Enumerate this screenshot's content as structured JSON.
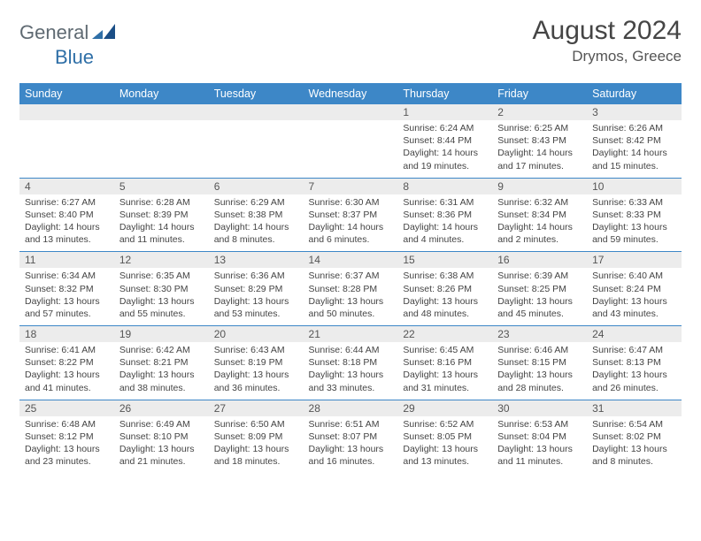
{
  "logo": {
    "text1": "General",
    "text2": "Blue"
  },
  "colors": {
    "header_bg": "#3d87c7",
    "header_text": "#ffffff",
    "daynum_bg": "#ececec",
    "row_border": "#3d87c7",
    "logo_gray": "#5f6a72",
    "logo_blue": "#2f6fa7"
  },
  "title": "August 2024",
  "location": "Drymos, Greece",
  "weekdays": [
    "Sunday",
    "Monday",
    "Tuesday",
    "Wednesday",
    "Thursday",
    "Friday",
    "Saturday"
  ],
  "weeks": [
    [
      {
        "day": "",
        "sunrise": "",
        "sunset": "",
        "daylight": ""
      },
      {
        "day": "",
        "sunrise": "",
        "sunset": "",
        "daylight": ""
      },
      {
        "day": "",
        "sunrise": "",
        "sunset": "",
        "daylight": ""
      },
      {
        "day": "",
        "sunrise": "",
        "sunset": "",
        "daylight": ""
      },
      {
        "day": "1",
        "sunrise": "Sunrise: 6:24 AM",
        "sunset": "Sunset: 8:44 PM",
        "daylight": "Daylight: 14 hours and 19 minutes."
      },
      {
        "day": "2",
        "sunrise": "Sunrise: 6:25 AM",
        "sunset": "Sunset: 8:43 PM",
        "daylight": "Daylight: 14 hours and 17 minutes."
      },
      {
        "day": "3",
        "sunrise": "Sunrise: 6:26 AM",
        "sunset": "Sunset: 8:42 PM",
        "daylight": "Daylight: 14 hours and 15 minutes."
      }
    ],
    [
      {
        "day": "4",
        "sunrise": "Sunrise: 6:27 AM",
        "sunset": "Sunset: 8:40 PM",
        "daylight": "Daylight: 14 hours and 13 minutes."
      },
      {
        "day": "5",
        "sunrise": "Sunrise: 6:28 AM",
        "sunset": "Sunset: 8:39 PM",
        "daylight": "Daylight: 14 hours and 11 minutes."
      },
      {
        "day": "6",
        "sunrise": "Sunrise: 6:29 AM",
        "sunset": "Sunset: 8:38 PM",
        "daylight": "Daylight: 14 hours and 8 minutes."
      },
      {
        "day": "7",
        "sunrise": "Sunrise: 6:30 AM",
        "sunset": "Sunset: 8:37 PM",
        "daylight": "Daylight: 14 hours and 6 minutes."
      },
      {
        "day": "8",
        "sunrise": "Sunrise: 6:31 AM",
        "sunset": "Sunset: 8:36 PM",
        "daylight": "Daylight: 14 hours and 4 minutes."
      },
      {
        "day": "9",
        "sunrise": "Sunrise: 6:32 AM",
        "sunset": "Sunset: 8:34 PM",
        "daylight": "Daylight: 14 hours and 2 minutes."
      },
      {
        "day": "10",
        "sunrise": "Sunrise: 6:33 AM",
        "sunset": "Sunset: 8:33 PM",
        "daylight": "Daylight: 13 hours and 59 minutes."
      }
    ],
    [
      {
        "day": "11",
        "sunrise": "Sunrise: 6:34 AM",
        "sunset": "Sunset: 8:32 PM",
        "daylight": "Daylight: 13 hours and 57 minutes."
      },
      {
        "day": "12",
        "sunrise": "Sunrise: 6:35 AM",
        "sunset": "Sunset: 8:30 PM",
        "daylight": "Daylight: 13 hours and 55 minutes."
      },
      {
        "day": "13",
        "sunrise": "Sunrise: 6:36 AM",
        "sunset": "Sunset: 8:29 PM",
        "daylight": "Daylight: 13 hours and 53 minutes."
      },
      {
        "day": "14",
        "sunrise": "Sunrise: 6:37 AM",
        "sunset": "Sunset: 8:28 PM",
        "daylight": "Daylight: 13 hours and 50 minutes."
      },
      {
        "day": "15",
        "sunrise": "Sunrise: 6:38 AM",
        "sunset": "Sunset: 8:26 PM",
        "daylight": "Daylight: 13 hours and 48 minutes."
      },
      {
        "day": "16",
        "sunrise": "Sunrise: 6:39 AM",
        "sunset": "Sunset: 8:25 PM",
        "daylight": "Daylight: 13 hours and 45 minutes."
      },
      {
        "day": "17",
        "sunrise": "Sunrise: 6:40 AM",
        "sunset": "Sunset: 8:24 PM",
        "daylight": "Daylight: 13 hours and 43 minutes."
      }
    ],
    [
      {
        "day": "18",
        "sunrise": "Sunrise: 6:41 AM",
        "sunset": "Sunset: 8:22 PM",
        "daylight": "Daylight: 13 hours and 41 minutes."
      },
      {
        "day": "19",
        "sunrise": "Sunrise: 6:42 AM",
        "sunset": "Sunset: 8:21 PM",
        "daylight": "Daylight: 13 hours and 38 minutes."
      },
      {
        "day": "20",
        "sunrise": "Sunrise: 6:43 AM",
        "sunset": "Sunset: 8:19 PM",
        "daylight": "Daylight: 13 hours and 36 minutes."
      },
      {
        "day": "21",
        "sunrise": "Sunrise: 6:44 AM",
        "sunset": "Sunset: 8:18 PM",
        "daylight": "Daylight: 13 hours and 33 minutes."
      },
      {
        "day": "22",
        "sunrise": "Sunrise: 6:45 AM",
        "sunset": "Sunset: 8:16 PM",
        "daylight": "Daylight: 13 hours and 31 minutes."
      },
      {
        "day": "23",
        "sunrise": "Sunrise: 6:46 AM",
        "sunset": "Sunset: 8:15 PM",
        "daylight": "Daylight: 13 hours and 28 minutes."
      },
      {
        "day": "24",
        "sunrise": "Sunrise: 6:47 AM",
        "sunset": "Sunset: 8:13 PM",
        "daylight": "Daylight: 13 hours and 26 minutes."
      }
    ],
    [
      {
        "day": "25",
        "sunrise": "Sunrise: 6:48 AM",
        "sunset": "Sunset: 8:12 PM",
        "daylight": "Daylight: 13 hours and 23 minutes."
      },
      {
        "day": "26",
        "sunrise": "Sunrise: 6:49 AM",
        "sunset": "Sunset: 8:10 PM",
        "daylight": "Daylight: 13 hours and 21 minutes."
      },
      {
        "day": "27",
        "sunrise": "Sunrise: 6:50 AM",
        "sunset": "Sunset: 8:09 PM",
        "daylight": "Daylight: 13 hours and 18 minutes."
      },
      {
        "day": "28",
        "sunrise": "Sunrise: 6:51 AM",
        "sunset": "Sunset: 8:07 PM",
        "daylight": "Daylight: 13 hours and 16 minutes."
      },
      {
        "day": "29",
        "sunrise": "Sunrise: 6:52 AM",
        "sunset": "Sunset: 8:05 PM",
        "daylight": "Daylight: 13 hours and 13 minutes."
      },
      {
        "day": "30",
        "sunrise": "Sunrise: 6:53 AM",
        "sunset": "Sunset: 8:04 PM",
        "daylight": "Daylight: 13 hours and 11 minutes."
      },
      {
        "day": "31",
        "sunrise": "Sunrise: 6:54 AM",
        "sunset": "Sunset: 8:02 PM",
        "daylight": "Daylight: 13 hours and 8 minutes."
      }
    ]
  ]
}
